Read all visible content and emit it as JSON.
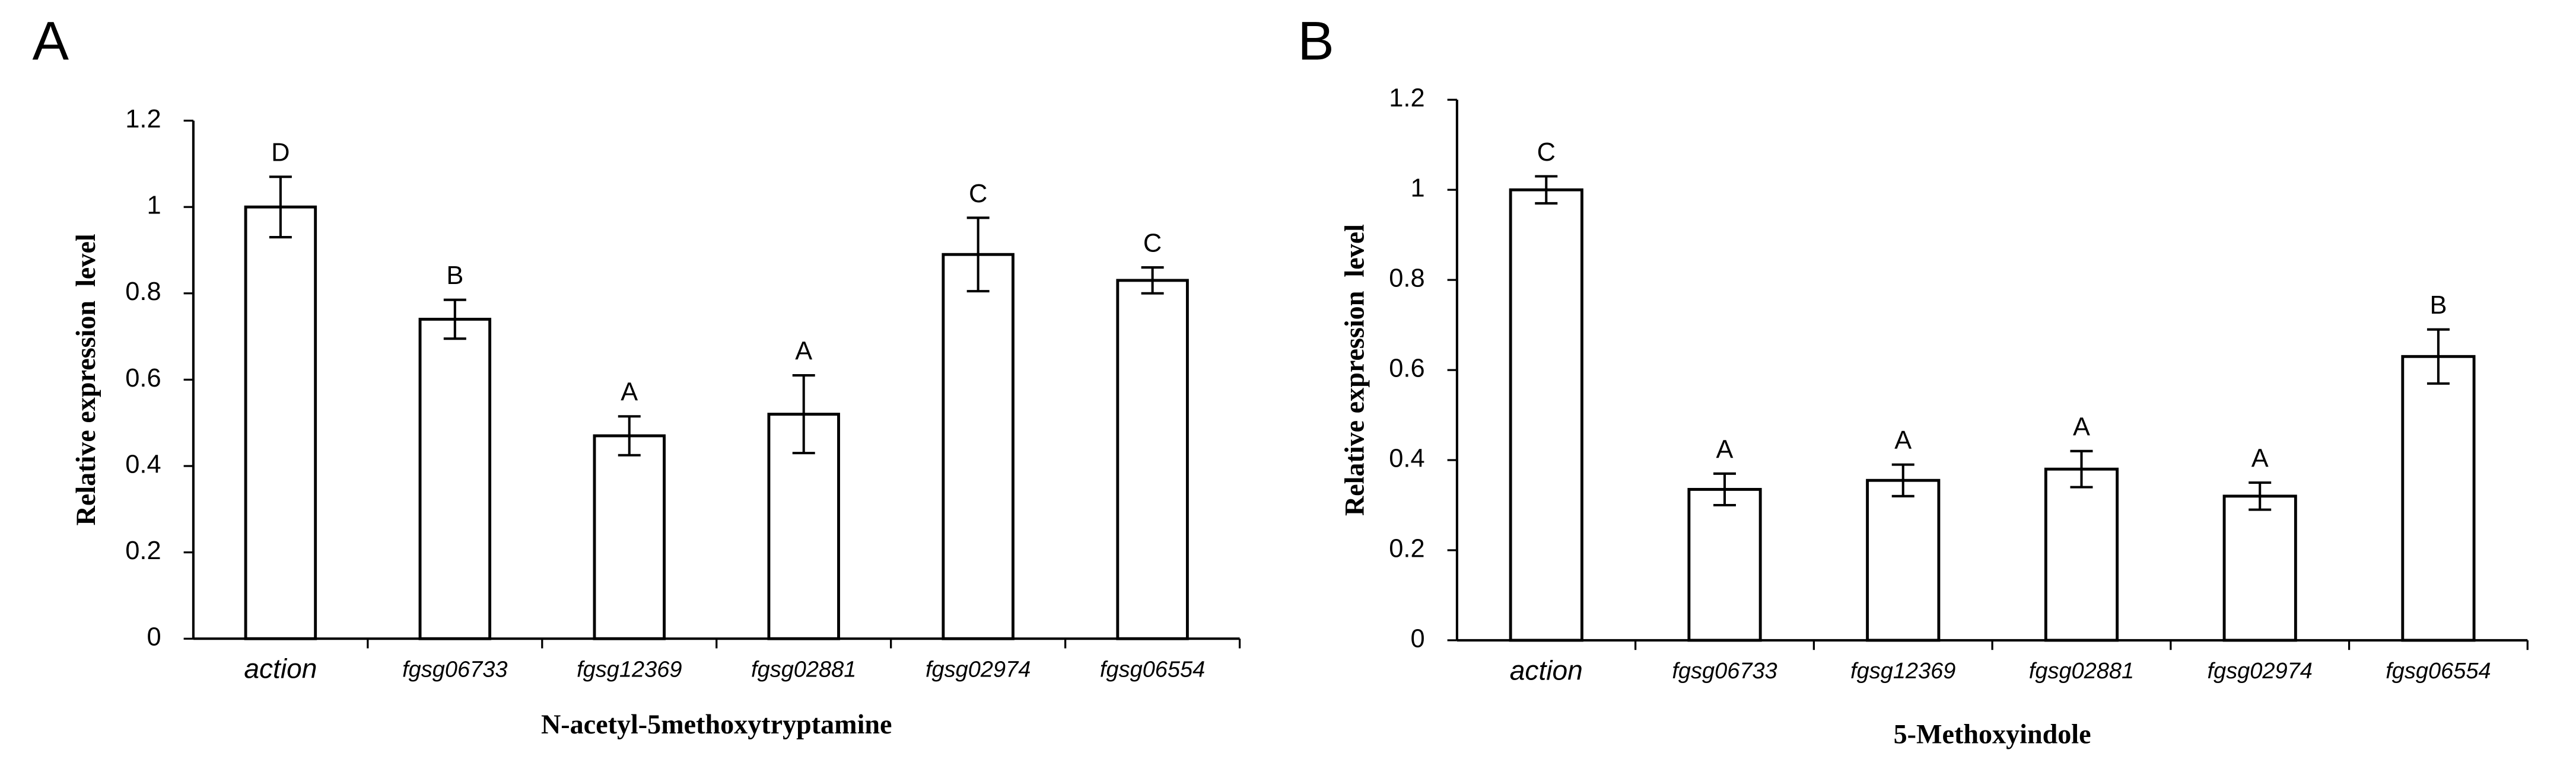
{
  "chart_data": [
    {
      "type": "bar",
      "panel_label": "A",
      "xlabel": "N-acetyl-5methoxytryptamine",
      "ylabel": "Relative expression  level",
      "categories": [
        "action",
        "fgsg06733",
        "fgsg12369",
        "fgsg02881",
        "fgsg02974",
        "fgsg06554"
      ],
      "values": [
        1.0,
        0.74,
        0.47,
        0.52,
        0.89,
        0.83
      ],
      "errors": [
        0.07,
        0.045,
        0.045,
        0.09,
        0.085,
        0.03
      ],
      "annotations": [
        "D",
        "B",
        "A",
        "A",
        "C",
        "C"
      ],
      "color": "#ffffff",
      "ylim": [
        0,
        1.2
      ],
      "yticks": [
        0,
        0.2,
        0.4,
        0.6,
        0.8,
        1,
        1.2
      ]
    },
    {
      "type": "bar",
      "panel_label": "B",
      "xlabel": "5-Methoxyindole",
      "ylabel": "Relative expression  level",
      "categories": [
        "action",
        "fgsg06733",
        "fgsg12369",
        "fgsg02881",
        "fgsg02974",
        "fgsg06554"
      ],
      "values": [
        1.0,
        0.335,
        0.355,
        0.38,
        0.32,
        0.63
      ],
      "errors": [
        0.03,
        0.035,
        0.035,
        0.04,
        0.03,
        0.06
      ],
      "annotations": [
        "C",
        "A",
        "A",
        "A",
        "A",
        "B"
      ],
      "color": "#ffffff",
      "ylim": [
        0,
        1.2
      ],
      "yticks": [
        0,
        0.2,
        0.4,
        0.6,
        0.8,
        1,
        1.2
      ]
    }
  ]
}
